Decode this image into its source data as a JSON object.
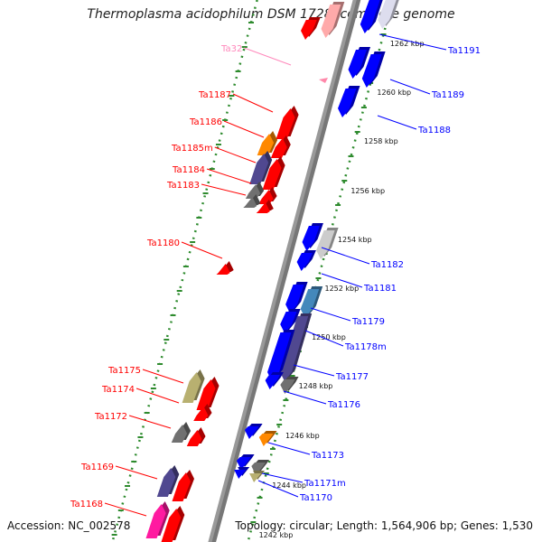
{
  "title": "Thermoplasma acidophilum DSM 1728, complete genome",
  "accession": "Accession: NC_002578",
  "summary": "Topology: circular; Length: 1,564,906 bp; Genes: 1,530",
  "colors": {
    "forward": "#ff0000",
    "reverse": "#0000ff",
    "pseudo": "#ff88aa",
    "rna_gene": "#ff8800",
    "grey_gene": "#707070",
    "khaki_gene": "#b8b070",
    "purple_gene": "#504890",
    "steel_gene": "#4488bb",
    "light_grey_gene": "#cccccc",
    "magenta_gene": "#ff1aa0",
    "tick": "#2e8b2e",
    "backbone": "#999999"
  },
  "kbp_ticks": [
    "1262 kbp",
    "1260 kbp",
    "1258 kbp",
    "1256 kbp",
    "1254 kbp",
    "1252 kbp",
    "1250 kbp",
    "1248 kbp",
    "1246 kbp",
    "1244 kbp",
    "1242 kbp"
  ],
  "left_labels": [
    "Ta32",
    "Ta1187",
    "Ta1186",
    "Ta1185m",
    "Ta1184",
    "Ta1183",
    "Ta1180",
    "Ta1175",
    "Ta1174",
    "Ta1172",
    "Ta1169",
    "Ta1168"
  ],
  "right_labels": [
    "Ta1191",
    "Ta1189",
    "Ta1188",
    "Ta1182",
    "Ta1181",
    "Ta1179",
    "Ta1178m",
    "Ta1177",
    "Ta1176",
    "Ta1173",
    "Ta1171m",
    "Ta1170"
  ]
}
